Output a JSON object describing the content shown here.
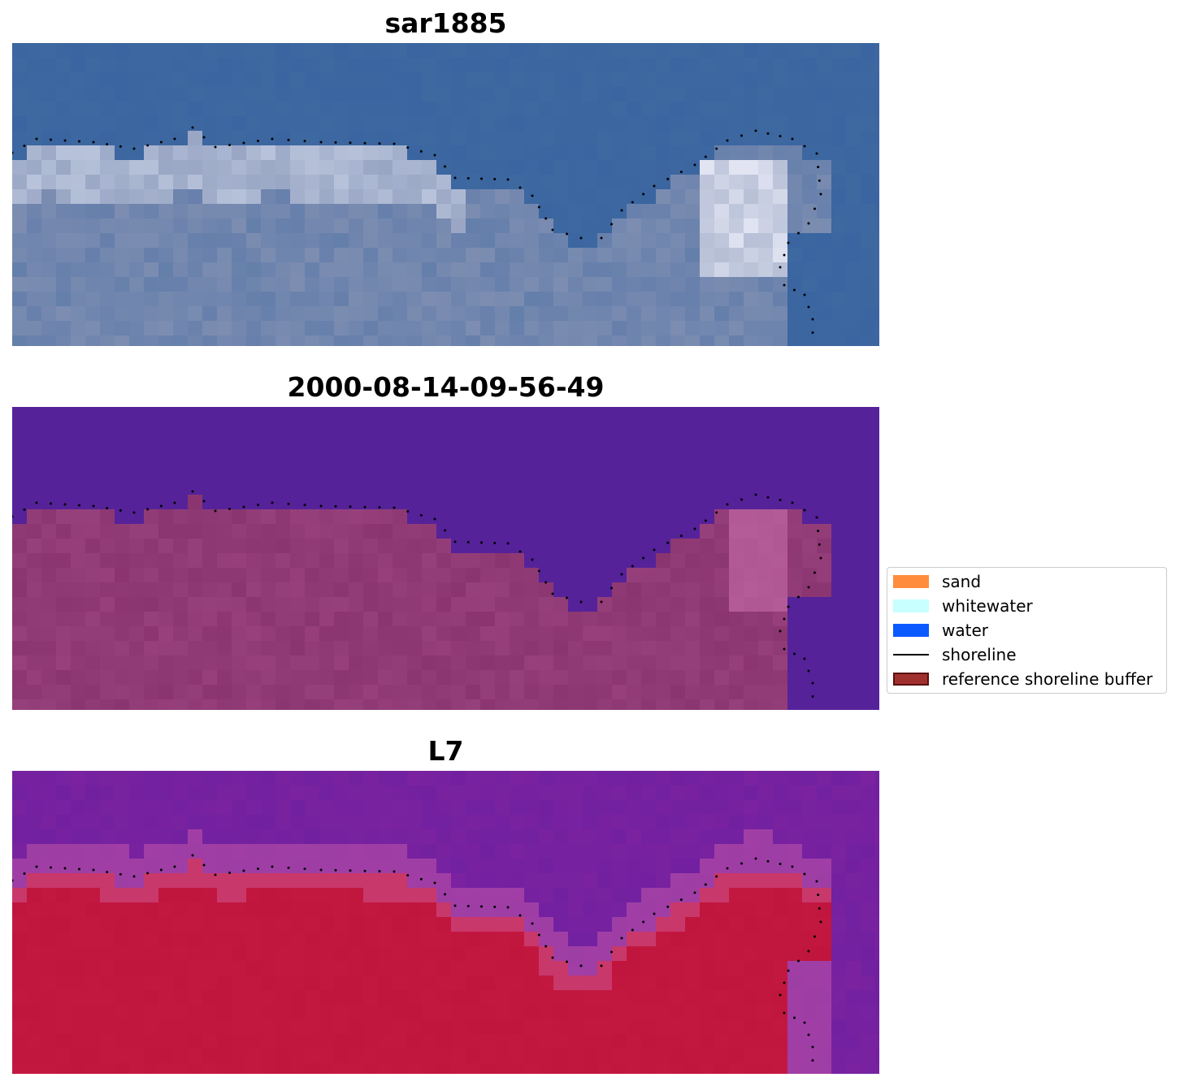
{
  "panels": [
    {
      "title": "sar1885",
      "palette": "rgb"
    },
    {
      "title": "2000-08-14-09-56-49",
      "palette": "classified"
    },
    {
      "title": "L7",
      "palette": "index"
    }
  ],
  "legend": {
    "items": [
      {
        "label": "sand",
        "kind": "patch",
        "color": "#FF8C3C",
        "edge": "#FF8C3C"
      },
      {
        "label": "whitewater",
        "kind": "patch",
        "color": "#C8FFFF",
        "edge": "#C8FFFF"
      },
      {
        "label": "water",
        "kind": "patch",
        "color": "#0A5AFF",
        "edge": "#0A5AFF"
      },
      {
        "label": "shoreline",
        "kind": "line",
        "color": "#000000"
      },
      {
        "label": "reference shoreline buffer",
        "kind": "patch",
        "color": "#A0302E",
        "edge": "#5A1010"
      }
    ]
  },
  "colors": {
    "ocean_rgb": "#3A65A0",
    "land_rgb": "#8894B4",
    "bright_rgb": "#F0F0FA",
    "ocean_classified": "#55229A",
    "land_classified": "#8A3570",
    "ocean_index": "#7A22A0",
    "land_index": "#C0163E"
  }
}
